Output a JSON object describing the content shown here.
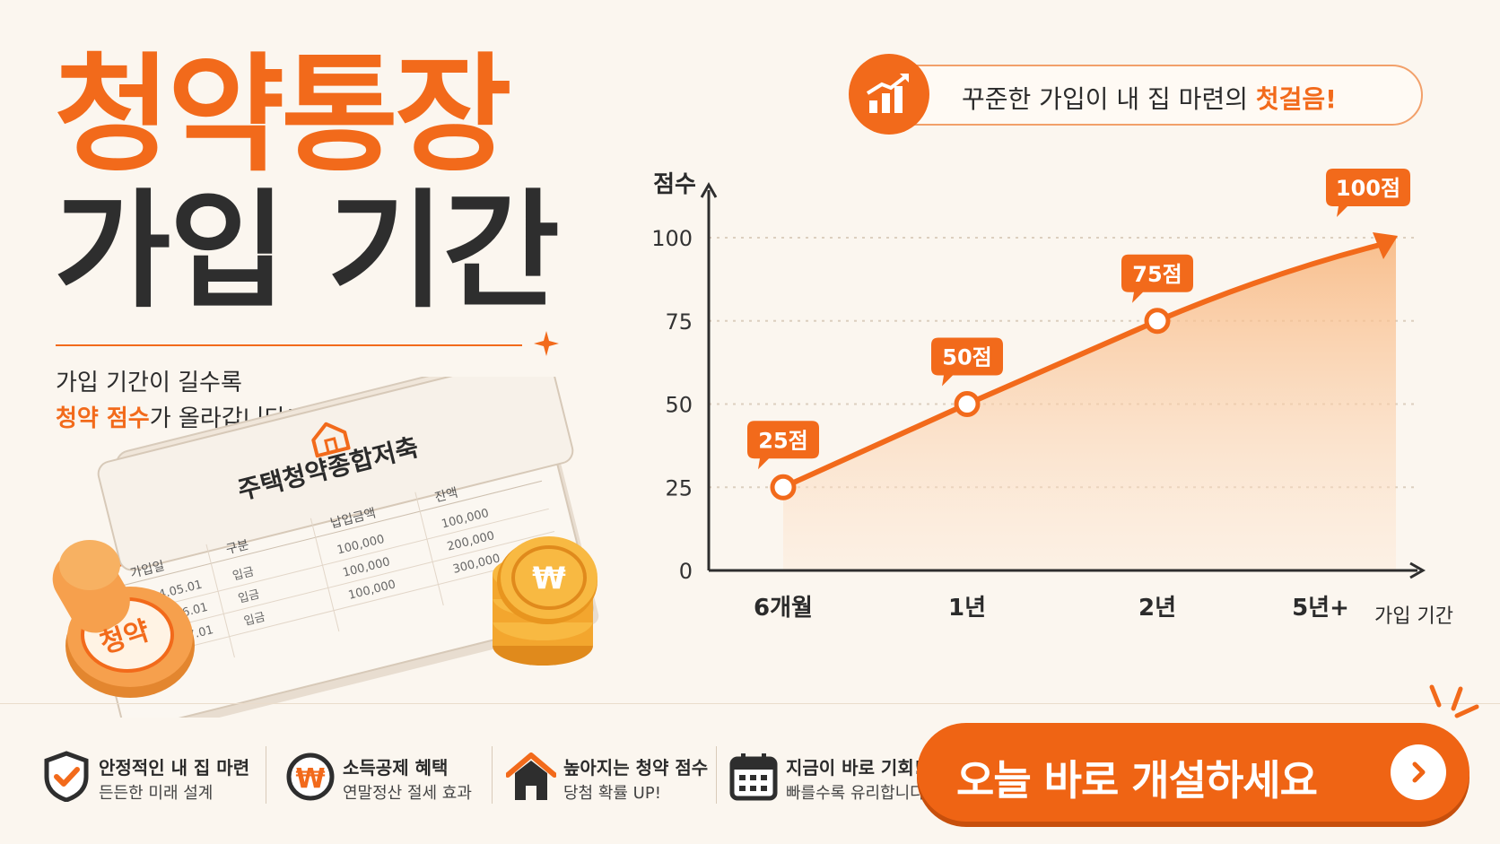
{
  "headline": {
    "line1": "청약통장",
    "line2": "가입 기간"
  },
  "subtitle": {
    "line1": "가입 기간이 길수록",
    "line2_highlight": "청약 점수",
    "line2_rest": "가 올라갑니다!"
  },
  "banner": {
    "text_before": "꾸준한 가입이 내 집 마련의 ",
    "text_highlight": "첫걸음!"
  },
  "passbook": {
    "title": "주택청약종합저축",
    "headers": [
      "가입일",
      "구분",
      "납입금액",
      "잔액"
    ],
    "rows": [
      [
        "2024.05.01",
        "입금",
        "100,000",
        "100,000"
      ],
      [
        "2024.06.01",
        "입금",
        "100,000",
        "200,000"
      ],
      [
        "2024.07.01",
        "입금",
        "100,000",
        "300,000"
      ]
    ],
    "stamp_label": "청약"
  },
  "chart_data": {
    "type": "area",
    "ylabel": "점수",
    "xlabel": "가입 기간",
    "categories": [
      "6개월",
      "1년",
      "2년",
      "5년+"
    ],
    "y_ticks": [
      "0",
      "25",
      "50",
      "75",
      "100"
    ],
    "ylim": [
      0,
      100
    ],
    "values": [
      25,
      50,
      75,
      100
    ],
    "data_labels": [
      "25점",
      "50점",
      "75점",
      "100점"
    ],
    "grid": true
  },
  "features": [
    {
      "icon": "shield-check-icon",
      "title": "안정적인 내 집 마련",
      "sub": "든든한 미래 설계"
    },
    {
      "icon": "won-coin-icon",
      "title": "소득공제 혜택",
      "sub": "연말정산 절세 효과"
    },
    {
      "icon": "house-icon",
      "title": "높아지는 청약 점수",
      "sub": "당첨 확률 UP!"
    },
    {
      "icon": "calendar-icon",
      "title": "지금이 바로 기회!",
      "sub": "빠를수록 유리합니다"
    }
  ],
  "cta": {
    "label": "오늘 바로 개설하세요"
  },
  "colors": {
    "accent": "#f26a1b",
    "dark": "#2e2e2e",
    "background": "#fbf6ef"
  }
}
